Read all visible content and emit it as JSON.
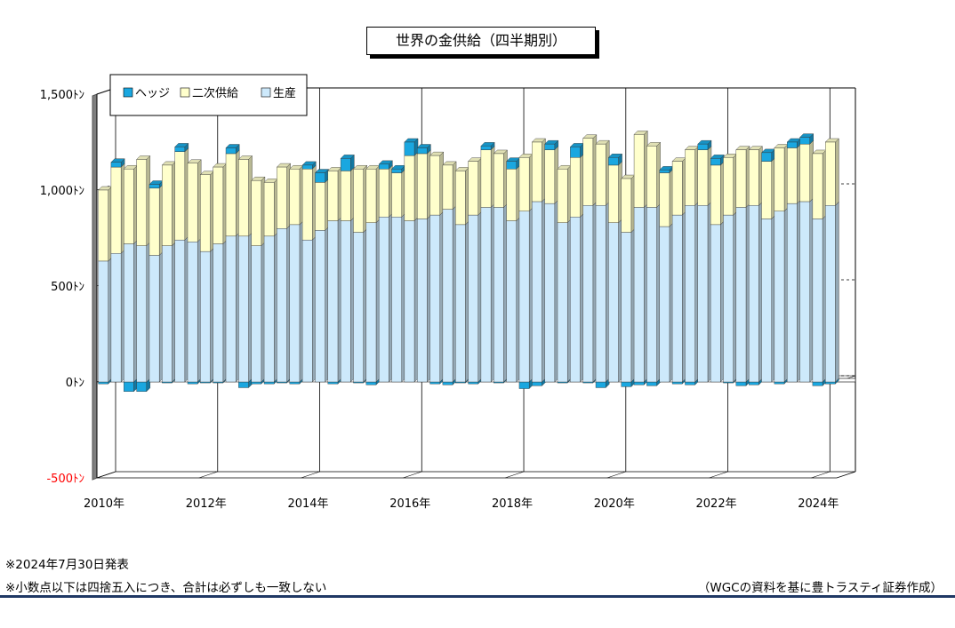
{
  "title": "世界の金供給（四半期別）",
  "notes": {
    "release": "※2024年7月30日発表",
    "rounding": "※小数点以下は四捨五入につき、合計は必ずしも一致しない",
    "source": "（WGCの資料を基に豊トラスティ証券作成）"
  },
  "colors": {
    "hedge": "#1aa7e0",
    "secondary": "#ffffcc",
    "production": "#cde9fb"
  },
  "chart_data": {
    "type": "bar",
    "stacked": true,
    "title": "世界の金供給（四半期別）",
    "ylim": [
      -500,
      1500
    ],
    "yticks": [
      -500,
      0,
      500,
      1000,
      1500
    ],
    "ytick_labels": [
      "-500ﾄﾝ",
      "0ﾄﾝ",
      "500ﾄﾝ",
      "1,000ﾄﾝ",
      "1,500ﾄﾝ"
    ],
    "xtick_labels": [
      "2010年",
      "2012年",
      "2014年",
      "2016年",
      "2018年",
      "2020年",
      "2022年",
      "2024年"
    ],
    "legend_position": "top-left",
    "categories": [
      "2010Q1",
      "2010Q2",
      "2010Q3",
      "2010Q4",
      "2011Q1",
      "2011Q2",
      "2011Q3",
      "2011Q4",
      "2012Q1",
      "2012Q2",
      "2012Q3",
      "2012Q4",
      "2013Q1",
      "2013Q2",
      "2013Q3",
      "2013Q4",
      "2014Q1",
      "2014Q2",
      "2014Q3",
      "2014Q4",
      "2015Q1",
      "2015Q2",
      "2015Q3",
      "2015Q4",
      "2016Q1",
      "2016Q2",
      "2016Q3",
      "2016Q4",
      "2017Q1",
      "2017Q2",
      "2017Q3",
      "2017Q4",
      "2018Q1",
      "2018Q2",
      "2018Q3",
      "2018Q4",
      "2019Q1",
      "2019Q2",
      "2019Q3",
      "2019Q4",
      "2020Q1",
      "2020Q2",
      "2020Q3",
      "2020Q4",
      "2021Q1",
      "2021Q2",
      "2021Q3",
      "2021Q4",
      "2022Q1",
      "2022Q2",
      "2022Q3",
      "2022Q4",
      "2023Q1",
      "2023Q2",
      "2023Q3",
      "2023Q4",
      "2024Q1",
      "2024Q2"
    ],
    "series": [
      {
        "name": "生産",
        "values": [
          630,
          670,
          720,
          710,
          660,
          710,
          740,
          730,
          680,
          720,
          760,
          760,
          710,
          760,
          800,
          820,
          740,
          790,
          840,
          840,
          780,
          830,
          860,
          860,
          840,
          850,
          870,
          900,
          820,
          870,
          910,
          910,
          840,
          890,
          940,
          930,
          830,
          860,
          920,
          920,
          830,
          780,
          910,
          910,
          810,
          870,
          920,
          920,
          820,
          870,
          910,
          920,
          850,
          890,
          930,
          940,
          850,
          920
        ]
      },
      {
        "name": "二次供給",
        "values": [
          370,
          450,
          390,
          450,
          350,
          420,
          460,
          410,
          400,
          400,
          430,
          400,
          340,
          280,
          320,
          290,
          370,
          250,
          260,
          260,
          330,
          280,
          250,
          230,
          340,
          340,
          310,
          230,
          280,
          280,
          300,
          280,
          270,
          280,
          310,
          280,
          280,
          310,
          350,
          320,
          300,
          280,
          380,
          320,
          280,
          280,
          290,
          290,
          310,
          300,
          300,
          290,
          300,
          330,
          290,
          300,
          340,
          330
        ]
      },
      {
        "name": "ヘッジ",
        "values": [
          -10,
          25,
          -50,
          -50,
          20,
          -5,
          25,
          -10,
          -5,
          -5,
          30,
          -30,
          -10,
          -10,
          -5,
          -10,
          20,
          50,
          -10,
          65,
          -5,
          -15,
          25,
          20,
          70,
          30,
          -10,
          -15,
          -5,
          -10,
          20,
          -5,
          40,
          -35,
          -20,
          30,
          -5,
          55,
          -5,
          -30,
          40,
          -25,
          -15,
          -20,
          15,
          -10,
          -15,
          30,
          35,
          -5,
          -20,
          -15,
          45,
          -10,
          30,
          35,
          -20,
          -10
        ]
      }
    ]
  }
}
